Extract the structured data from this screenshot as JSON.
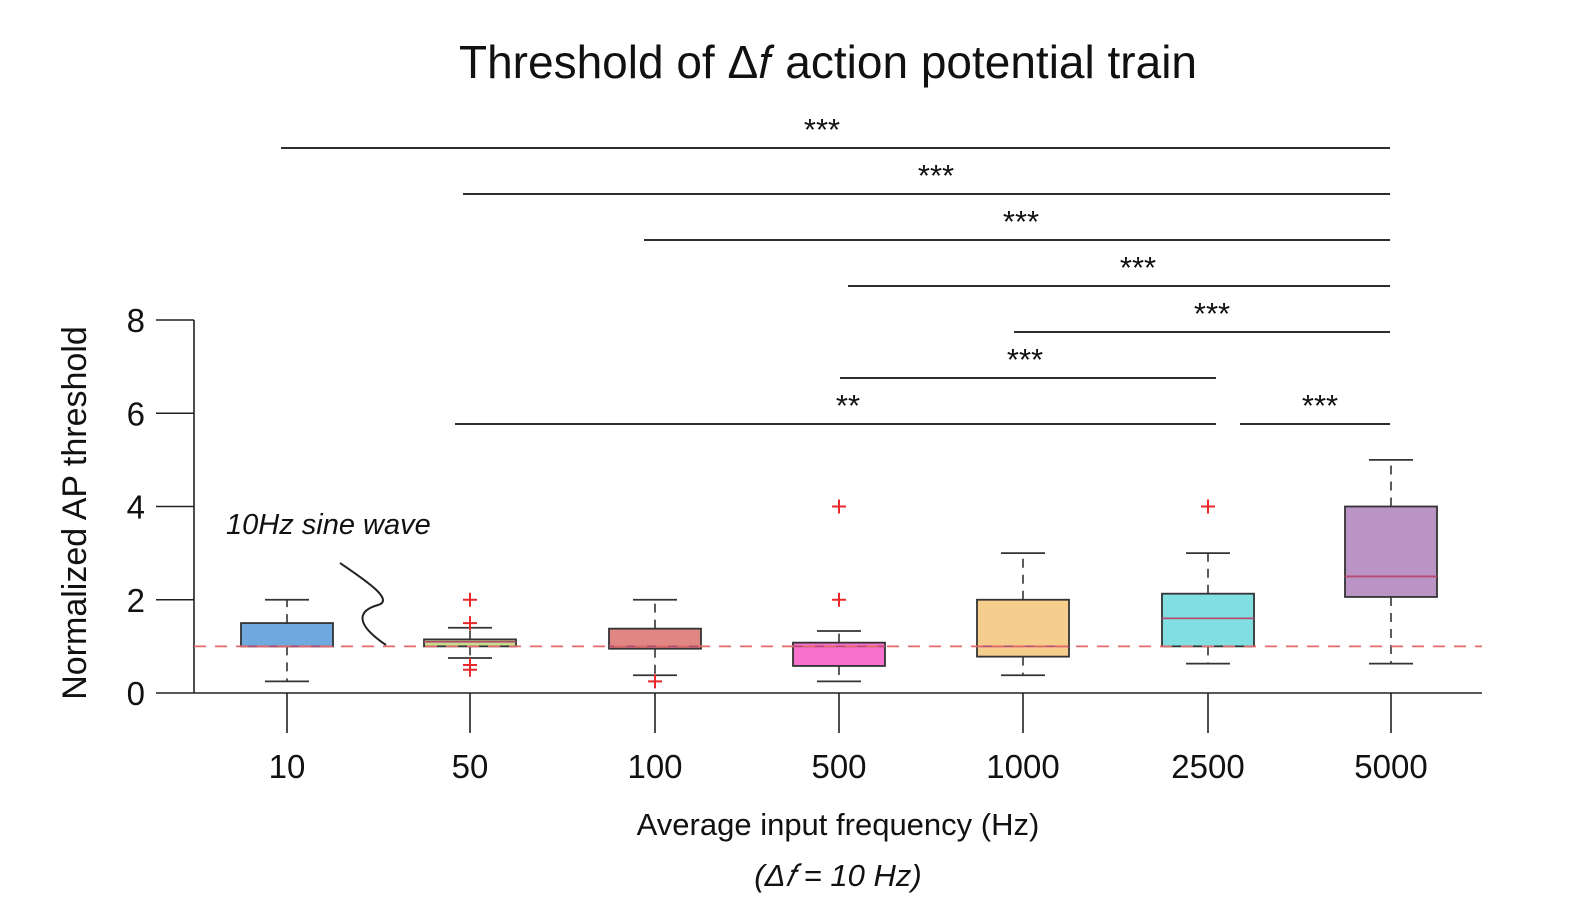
{
  "chart_data": {
    "type": "box",
    "title": "Threshold of Δ𝑓 action potential train",
    "xlabel": "Average input frequency (Hz)",
    "xlabel_sub": "(Δ𝑓 = 10 Hz)",
    "ylabel": "Normalized AP threshold",
    "ylim": [
      0,
      8
    ],
    "yticks": [
      "0",
      "2",
      "4",
      "6",
      "8"
    ],
    "categories": [
      "10",
      "50",
      "100",
      "500",
      "1000",
      "2500",
      "5000"
    ],
    "boxes": [
      {
        "category": "10",
        "whisker_low": 0.25,
        "q1": 1.0,
        "median": 1.0,
        "q3": 1.5,
        "whisker_high": 2.0,
        "outliers": [],
        "color": "#6FA9DE"
      },
      {
        "category": "50",
        "whisker_low": 0.75,
        "q1": 1.0,
        "median": 1.1,
        "q3": 1.15,
        "whisker_high": 1.4,
        "outliers": [
          2.0,
          1.5,
          0.6,
          0.5
        ],
        "color": "#C3DC8E"
      },
      {
        "category": "100",
        "whisker_low": 0.38,
        "q1": 0.95,
        "median": 1.0,
        "q3": 1.38,
        "whisker_high": 2.0,
        "outliers": [
          0.25
        ],
        "color": "#E08783"
      },
      {
        "category": "500",
        "whisker_low": 0.25,
        "q1": 0.58,
        "median": 1.0,
        "q3": 1.08,
        "whisker_high": 1.33,
        "outliers": [
          4.0,
          2.0
        ],
        "color": "#F571CC"
      },
      {
        "category": "1000",
        "whisker_low": 0.38,
        "q1": 0.78,
        "median": 1.0,
        "q3": 2.0,
        "whisker_high": 3.0,
        "outliers": [],
        "color": "#F5CE8E"
      },
      {
        "category": "2500",
        "whisker_low": 0.63,
        "q1": 1.0,
        "median": 1.6,
        "q3": 2.13,
        "whisker_high": 3.0,
        "outliers": [
          4.0
        ],
        "color": "#82DFE1"
      },
      {
        "category": "5000",
        "whisker_low": 0.63,
        "q1": 2.06,
        "median": 2.5,
        "q3": 4.0,
        "whisker_high": 5.0,
        "outliers": [],
        "color": "#BA94C4"
      }
    ],
    "reference_line": {
      "y": 1.0,
      "style": "dashed",
      "color": "#E36A6A"
    },
    "outlier_color": "#E8282A",
    "median_color": "#B74B6F",
    "significance": [
      {
        "from": "10",
        "to": "5000",
        "label": "***"
      },
      {
        "from": "50",
        "to": "5000",
        "label": "***"
      },
      {
        "from": "100",
        "to": "5000",
        "label": "***"
      },
      {
        "from": "500",
        "to": "5000",
        "label": "***"
      },
      {
        "from": "1000",
        "to": "5000",
        "label": "***"
      },
      {
        "from": "500",
        "to": "2500",
        "label": "***"
      },
      {
        "from": "50",
        "to": "2500",
        "label": "**"
      },
      {
        "from": "2500",
        "to": "5000",
        "label": "***"
      }
    ],
    "annotation": {
      "text": "10Hz sine wave",
      "target": "reference_line"
    }
  }
}
